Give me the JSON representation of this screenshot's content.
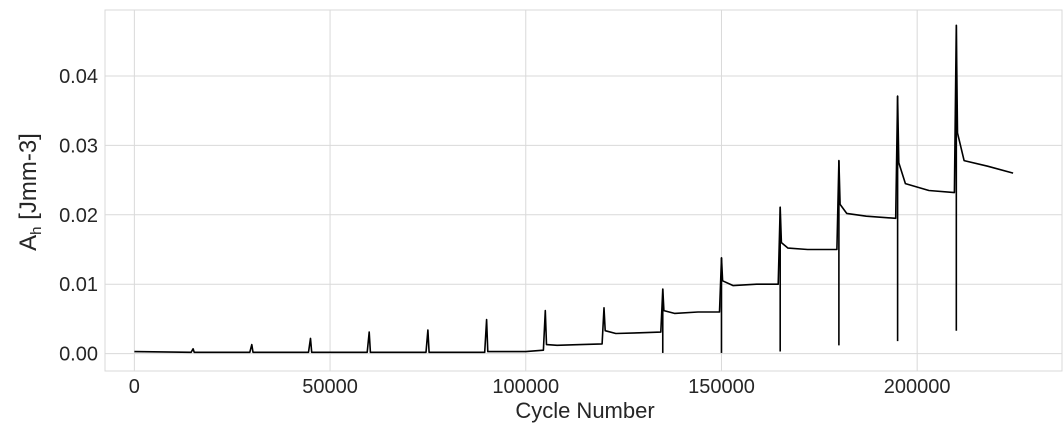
{
  "chart_data": {
    "type": "line",
    "title": "",
    "xlabel": "Cycle Number",
    "ylabel": "A",
    "ylabel_subscript": "h",
    "ylabel_suffix": " [Jmm-3]",
    "xlim": [
      -7500,
      237000
    ],
    "ylim": [
      -0.0025,
      0.0495
    ],
    "x_ticks": [
      0,
      50000,
      100000,
      150000,
      200000
    ],
    "x_tick_labels": [
      "0",
      "50000",
      "100000",
      "150000",
      "200000"
    ],
    "y_ticks": [
      0.0,
      0.01,
      0.02,
      0.03,
      0.04
    ],
    "y_tick_labels": [
      "0.00",
      "0.01",
      "0.02",
      "0.03",
      "0.04"
    ],
    "grid": true,
    "line_color": "#000000",
    "grid_color": "#d9d9d9",
    "series": [
      {
        "x": [
          0,
          14500,
          15000,
          15300,
          29500,
          30000,
          30300,
          44500,
          45000,
          45300,
          59500,
          60000,
          60300,
          74500,
          75000,
          75300,
          89500,
          90000,
          90300,
          100000,
          104500,
          105000,
          105300,
          108000,
          114000,
          119500,
          120000,
          120300,
          123000,
          129000,
          134500,
          135000,
          135300,
          138000,
          144000,
          149500,
          150000,
          150300,
          153000,
          159000,
          164500,
          165000,
          165300,
          167000,
          172000,
          179500,
          180000,
          180300,
          182000,
          187000,
          194500,
          195000,
          195300,
          197000,
          203000,
          209500,
          210000,
          210300,
          212000,
          218000,
          224500
        ],
        "y": [
          0.0003,
          0.0002,
          0.0007,
          0.0002,
          0.0002,
          0.0013,
          0.0002,
          0.0002,
          0.0022,
          0.0002,
          0.0002,
          0.0031,
          0.0002,
          0.0002,
          0.0034,
          0.0002,
          0.0002,
          0.0049,
          0.0003,
          0.0003,
          0.0005,
          0.0062,
          0.0013,
          0.0012,
          0.0013,
          0.0014,
          0.0066,
          0.0033,
          0.0029,
          0.003,
          0.0031,
          0.0093,
          0.0062,
          0.0058,
          0.006,
          0.006,
          0.0138,
          0.0105,
          0.0098,
          0.01,
          0.01,
          0.0211,
          0.016,
          0.0152,
          0.015,
          0.015,
          0.0278,
          0.0215,
          0.0202,
          0.0198,
          0.0195,
          0.0371,
          0.0275,
          0.0245,
          0.0235,
          0.0232,
          0.0473,
          0.0318,
          0.0278,
          0.027,
          0.026
        ],
        "dips": [
          {
            "x": 135000,
            "y": 0.0001
          },
          {
            "x": 150000,
            "y": 0.0001
          },
          {
            "x": 165000,
            "y": 0.0003
          },
          {
            "x": 180000,
            "y": 0.0012
          },
          {
            "x": 195000,
            "y": 0.0018
          },
          {
            "x": 210000,
            "y": 0.0033
          }
        ]
      }
    ]
  }
}
